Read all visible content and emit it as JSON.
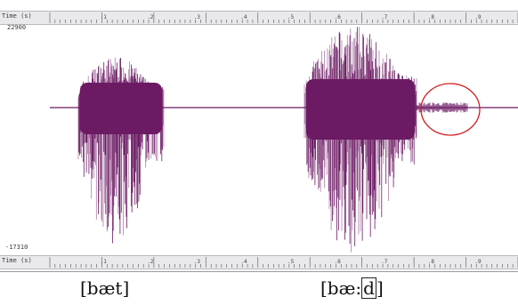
{
  "ruler": {
    "time_label": "Time (s)",
    "ticks": [
      ".1",
      ".2",
      ".3",
      ".4",
      ".5",
      ".6",
      ".7",
      ".8",
      ".9"
    ]
  },
  "amplitude": {
    "max": "22900",
    "min": "-17310"
  },
  "colors": {
    "waveform": "#6b1a63",
    "highlight_circle": "#d42020",
    "ruler_bg": "#e9e9ec"
  },
  "annotations": {
    "circle": "highlighted low-amplitude region after second burst"
  },
  "transcriptions": {
    "first": "[bæt]",
    "second_prefix": "[bæ:",
    "second_boxed": "d",
    "second_suffix": "]"
  }
}
